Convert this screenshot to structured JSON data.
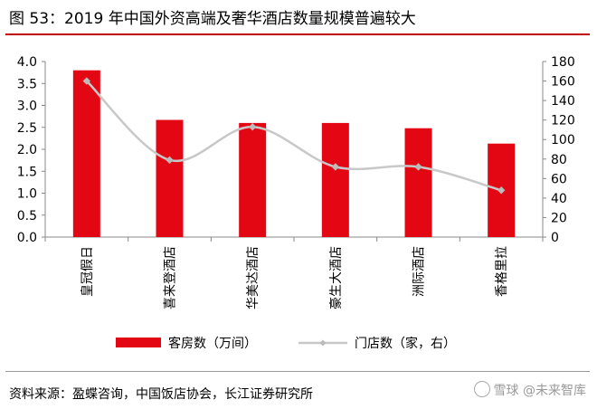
{
  "figure_title": "图 53：2019 年中国外资高端及奢华酒店数量规模普遍较大",
  "source_note": "资料来源：盈蝶咨询，中国饭店协会，长江证券研究所",
  "watermark": "雪球 @未来智库",
  "colors": {
    "bar": "#e30613",
    "line": "#c8c8c8",
    "marker": "#bbbbbb",
    "axis": "#888888",
    "title_rule": "#c00000"
  },
  "chart_data": {
    "type": "bar+line",
    "categories": [
      "皇冠假日",
      "喜来登酒店",
      "华美达酒店",
      "豪生大酒店",
      "洲际酒店",
      "香格里拉"
    ],
    "series": [
      {
        "name": "客房数（万间）",
        "type": "bar",
        "axis": "left",
        "values": [
          3.8,
          2.67,
          2.6,
          2.6,
          2.48,
          2.13
        ]
      },
      {
        "name": "门店数（家，右）",
        "type": "line",
        "axis": "right",
        "values": [
          160,
          79,
          113,
          72,
          72,
          48
        ]
      }
    ],
    "y_left": {
      "min": 0,
      "max": 4,
      "step": 0.5,
      "ticks": [
        "0.0",
        "0.5",
        "1.0",
        "1.5",
        "2.0",
        "2.5",
        "3.0",
        "3.5",
        "4.0"
      ]
    },
    "y_right": {
      "min": 0,
      "max": 180,
      "step": 20,
      "ticks": [
        "0",
        "20",
        "40",
        "60",
        "80",
        "100",
        "120",
        "140",
        "160",
        "180"
      ]
    },
    "legend": [
      "客房数（万间）",
      "门店数（家，右）"
    ],
    "legend_position": "bottom"
  }
}
